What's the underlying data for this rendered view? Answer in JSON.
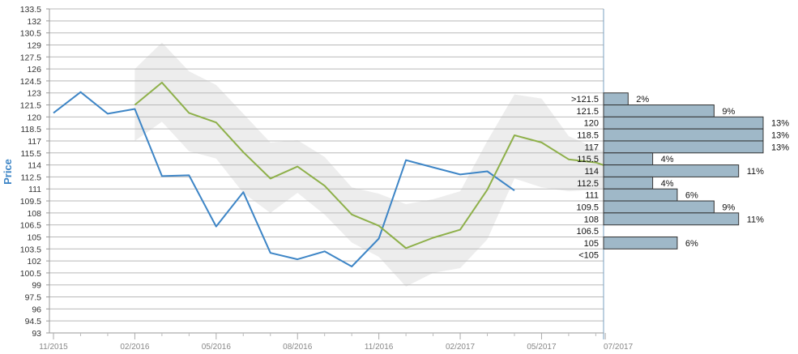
{
  "chart_data": {
    "type": "line",
    "ylabel": "Price",
    "ylim": [
      93,
      133.5
    ],
    "yticks": [
      93,
      94.5,
      96,
      97.5,
      99,
      100.5,
      102,
      103.5,
      105,
      106.5,
      108,
      109.5,
      111,
      112.5,
      114,
      115.5,
      117,
      118.5,
      120,
      121.5,
      123,
      124.5,
      126,
      127.5,
      129,
      130.5,
      132,
      133.5
    ],
    "ytick_labels": [
      "93",
      "94.5",
      "96",
      "97.5",
      "99",
      "100.5",
      "102",
      "103.5",
      "105",
      "106.5",
      "108",
      "109.5",
      "111",
      "112.5",
      "114",
      "115.5",
      "117",
      "118.5",
      "120",
      "121.5",
      "123",
      "124.5",
      "126",
      "127.5",
      "129",
      "130.5",
      "132",
      "133.5"
    ],
    "xlim": [
      0,
      20.35
    ],
    "xticks": [
      {
        "x": 0,
        "label": "11/2015"
      },
      {
        "x": 3,
        "label": "02/2016"
      },
      {
        "x": 6,
        "label": "05/2016"
      },
      {
        "x": 9,
        "label": "08/2016"
      },
      {
        "x": 12,
        "label": "11/2016"
      },
      {
        "x": 15,
        "label": "02/2017"
      },
      {
        "x": 18,
        "label": "05/2017"
      },
      {
        "x": 20.35,
        "label": "07/2017"
      }
    ],
    "minor_ticks": [
      1,
      2,
      4,
      5,
      7,
      8,
      10,
      11,
      13,
      14,
      16,
      17,
      19,
      20
    ],
    "grid": true,
    "series": [
      {
        "name": "",
        "color": "#3d85c6",
        "x": [
          0,
          1,
          2,
          3,
          4,
          5,
          6,
          7,
          8,
          9,
          10,
          11,
          12,
          13,
          14,
          15,
          16,
          17
        ],
        "values": [
          120.5,
          123.1,
          120.4,
          121.0,
          112.6,
          112.7,
          106.3,
          110.6,
          103.0,
          102.2,
          103.2,
          101.3,
          104.8,
          114.6,
          113.7,
          112.8,
          113.2,
          110.8
        ]
      },
      {
        "name": "",
        "color": "#8eb04a",
        "x": [
          3,
          4,
          5,
          6,
          7,
          8,
          9,
          10,
          11,
          12,
          13,
          14,
          15,
          16,
          17,
          18,
          19,
          20,
          20.35
        ],
        "values": [
          121.5,
          124.3,
          120.5,
          119.3,
          115.6,
          112.3,
          113.8,
          111.4,
          107.8,
          106.4,
          103.6,
          104.9,
          105.9,
          110.9,
          117.7,
          116.8,
          114.7,
          114.3,
          113.9
        ]
      }
    ],
    "band": {
      "name": "",
      "color": "#ededed",
      "x": [
        3,
        4,
        5,
        6,
        7,
        8,
        9,
        10,
        11,
        12,
        13,
        14,
        15,
        16,
        17,
        18,
        19,
        20,
        20.35
      ],
      "upper": [
        126.0,
        129.3,
        125.7,
        124.0,
        120.4,
        116.8,
        117.1,
        115.0,
        111.2,
        110.4,
        109.1,
        109.7,
        110.7,
        117.0,
        122.8,
        122.3,
        117.6,
        116.1,
        115.6
      ],
      "lower": [
        117.0,
        119.4,
        115.7,
        114.8,
        110.5,
        108.0,
        110.5,
        107.8,
        104.3,
        102.5,
        98.8,
        100.5,
        101.1,
        104.7,
        112.3,
        111.2,
        110.7,
        110.9,
        111.0
      ]
    },
    "distribution": {
      "type": "bar",
      "orientation": "horizontal",
      "color": "#9fb8c8",
      "categories": [
        ">121.5",
        "121.5",
        "120",
        "118.5",
        "117",
        "115.5",
        "114",
        "112.5",
        "111",
        "109.5",
        "108",
        "106.5",
        "105",
        "<105"
      ],
      "values": [
        2,
        9,
        13,
        13,
        13,
        4,
        11,
        4,
        6,
        9,
        11,
        0,
        6,
        0
      ],
      "value_labels": [
        "2%",
        "9%",
        "13%",
        "13%",
        "13%",
        "4%",
        "11%",
        "4%",
        "6%",
        "9%",
        "11%",
        "",
        "6%",
        ""
      ],
      "xlim": [
        0,
        13
      ]
    }
  }
}
